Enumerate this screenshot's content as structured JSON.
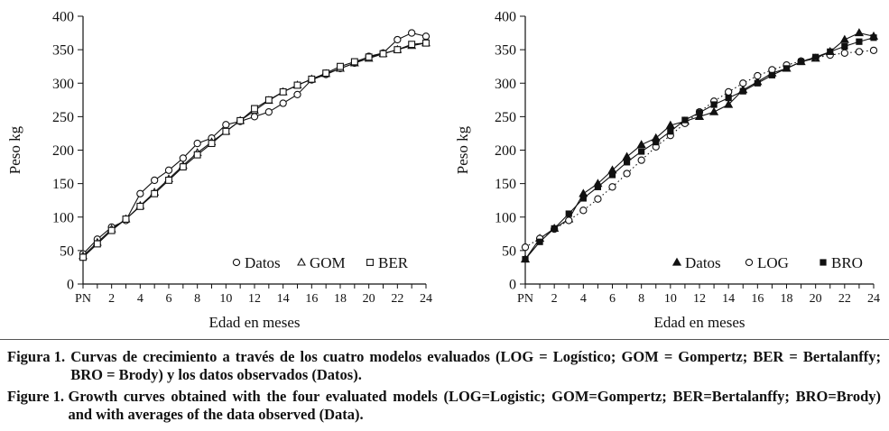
{
  "chart_data": [
    {
      "type": "line",
      "ylabel": "Peso kg",
      "xlabel": "Edad en meses",
      "ylim": [
        0,
        400
      ],
      "yticks": [
        0,
        50,
        100,
        150,
        200,
        250,
        300,
        350,
        400
      ],
      "xlim": [
        0,
        24
      ],
      "xtick_values": [
        0,
        2,
        4,
        6,
        8,
        10,
        12,
        14,
        16,
        18,
        20,
        22,
        24
      ],
      "xtick_labels": [
        "PN",
        "2",
        "4",
        "6",
        "8",
        "10",
        "12",
        "14",
        "16",
        "18",
        "20",
        "22",
        "24"
      ],
      "legend_position": "bottom-right",
      "x": [
        0,
        1,
        2,
        3,
        4,
        5,
        6,
        7,
        8,
        9,
        10,
        11,
        12,
        13,
        14,
        15,
        16,
        17,
        18,
        19,
        20,
        21,
        22,
        23,
        24
      ],
      "series": [
        {
          "name": "Datos",
          "marker": "circle",
          "line": "solid",
          "values": [
            45,
            67,
            85,
            95,
            135,
            155,
            170,
            188,
            210,
            218,
            238,
            243,
            250,
            257,
            270,
            283,
            305,
            313,
            322,
            330,
            340,
            345,
            365,
            375,
            370
          ]
        },
        {
          "name": "GOM",
          "marker": "triangle",
          "line": "solid",
          "values": [
            42,
            62,
            82,
            97,
            117,
            137,
            157,
            177,
            196,
            212,
            228,
            244,
            259,
            274,
            287,
            297,
            306,
            314,
            322,
            330,
            337,
            344,
            350,
            356,
            360
          ]
        },
        {
          "name": "BER",
          "marker": "square",
          "line": "solid",
          "values": [
            40,
            60,
            80,
            97,
            116,
            135,
            155,
            175,
            193,
            210,
            228,
            244,
            262,
            275,
            287,
            297,
            306,
            315,
            325,
            332,
            339,
            344,
            350,
            358,
            360
          ]
        }
      ]
    },
    {
      "type": "line",
      "ylabel": "Peso kg",
      "xlabel": "Edad en meses",
      "ylim": [
        0,
        400
      ],
      "yticks": [
        0,
        50,
        100,
        150,
        200,
        250,
        300,
        350,
        400
      ],
      "xlim": [
        0,
        24
      ],
      "xtick_values": [
        0,
        2,
        4,
        6,
        8,
        10,
        12,
        14,
        16,
        18,
        20,
        22,
        24
      ],
      "xtick_labels": [
        "PN",
        "2",
        "4",
        "6",
        "8",
        "10",
        "12",
        "14",
        "16",
        "18",
        "20",
        "22",
        "24"
      ],
      "legend_position": "bottom-right",
      "x": [
        0,
        1,
        2,
        3,
        4,
        5,
        6,
        7,
        8,
        9,
        10,
        11,
        12,
        13,
        14,
        15,
        16,
        17,
        18,
        19,
        20,
        21,
        22,
        23,
        24
      ],
      "series": [
        {
          "name": "Datos",
          "marker": "filled-triangle",
          "line": "solid",
          "values": [
            37,
            68,
            83,
            97,
            135,
            150,
            170,
            190,
            208,
            218,
            237,
            243,
            250,
            257,
            268,
            290,
            302,
            315,
            322,
            332,
            337,
            347,
            365,
            375,
            370
          ]
        },
        {
          "name": "LOG",
          "marker": "circle",
          "line": "dotted",
          "values": [
            55,
            68,
            82,
            95,
            110,
            127,
            145,
            165,
            185,
            205,
            222,
            240,
            257,
            273,
            287,
            300,
            311,
            320,
            327,
            333,
            338,
            342,
            345,
            347,
            349
          ]
        },
        {
          "name": "BRO",
          "marker": "filled-square",
          "line": "solid",
          "values": [
            37,
            63,
            83,
            105,
            128,
            145,
            163,
            182,
            198,
            212,
            228,
            245,
            256,
            268,
            278,
            288,
            300,
            312,
            322,
            332,
            339,
            347,
            355,
            362,
            368
          ]
        }
      ]
    }
  ],
  "captions": {
    "es_label": "Figura 1.",
    "es_text": "Curvas de crecimiento a través de los cuatro modelos evaluados (LOG = Logístico; GOM = Gompertz; BER = Bertalanffy; BRO = Brody) y los datos observados (Datos).",
    "en_label": "Figure 1.",
    "en_text": "Growth curves obtained with the four evaluated models (LOG=Logistic; GOM=Gompertz; BER=Bertalanffy; BRO=Brody) and with averages of the data observed (Data)."
  }
}
